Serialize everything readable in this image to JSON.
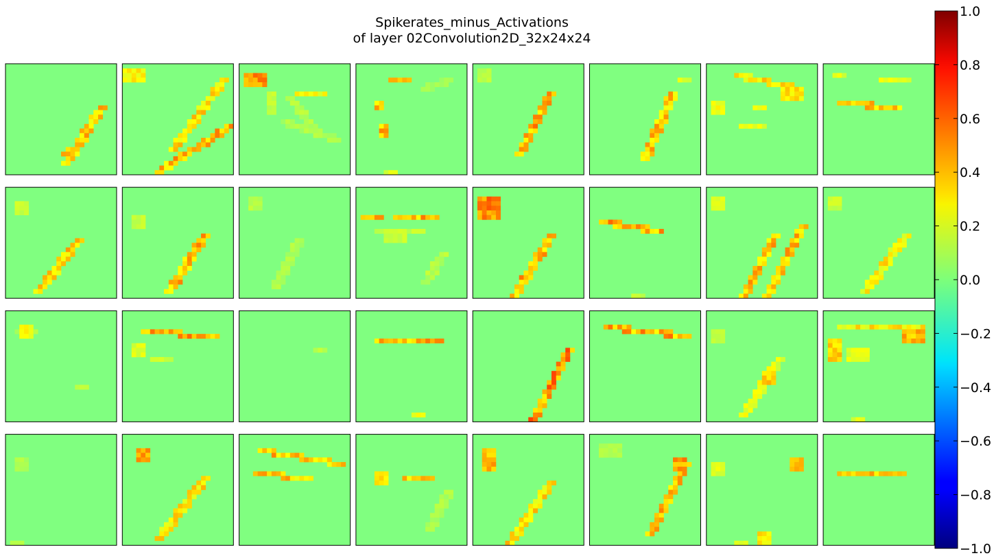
{
  "chart_data": {
    "type": "heatmap",
    "title": [
      "Spikerates_minus_Activations",
      "of layer 02Convolution2D_32x24x24"
    ],
    "grid": {
      "rows": 4,
      "cols": 8,
      "map_size": [
        24,
        24
      ]
    },
    "colormap": "jet",
    "colorbar": {
      "range": [
        -1.0,
        1.0
      ],
      "ticks": [
        1.0,
        0.8,
        0.6,
        0.4,
        0.2,
        0.0,
        -0.2,
        -0.4,
        -0.6,
        -0.8,
        -1.0
      ],
      "tick_labels": [
        "1.0",
        "0.8",
        "0.6",
        "0.4",
        "0.2",
        "0.0",
        "−0.2",
        "−0.4",
        "−0.6",
        "−0.8",
        "−1.0"
      ]
    },
    "background_value": 0.0,
    "maps": [
      {
        "strokes": [
          [
            20,
            9,
            12,
            21,
            0.38
          ],
          [
            13,
            18,
            12,
            19,
            0.48
          ]
        ],
        "blobs": []
      },
      {
        "strokes": [
          [
            21,
            3,
            10,
            18,
            0.34
          ],
          [
            22,
            13,
            7,
            23,
            0.42
          ]
        ],
        "blobs": [
          [
            2,
            2,
            2,
            1,
            0.28
          ]
        ]
      },
      {
        "strokes": [
          [
            10,
            7,
            15,
            13,
            0.12
          ],
          [
            9,
            12,
            20,
            16,
            0.1
          ],
          [
            6,
            6,
            6,
            10,
            0.15
          ]
        ],
        "blobs": [
          [
            3,
            3,
            2,
            1,
            0.48
          ],
          [
            15,
            6,
            3,
            0,
            0.25
          ]
        ]
      },
      {
        "strokes": [
          [
            4,
            8,
            4,
            9,
            0.38
          ],
          [
            5,
            13,
            5,
            15,
            0.42
          ],
          [
            14,
            5,
            19,
            3,
            0.08
          ]
        ],
        "blobs": [
          [
            9,
            3,
            2,
            0,
            0.4
          ],
          [
            7,
            23,
            1,
            0,
            0.2
          ]
        ]
      },
      {
        "strokes": [
          [
            16,
            6,
            9,
            19,
            0.44
          ]
        ],
        "blobs": [
          [
            2,
            2,
            1,
            1,
            0.12
          ]
        ]
      },
      {
        "strokes": [
          [
            17,
            6,
            11,
            20,
            0.4
          ]
        ],
        "blobs": [
          [
            20,
            3,
            1,
            0,
            0.2
          ]
        ]
      },
      {
        "strokes": [
          [
            6,
            2,
            19,
            5,
            0.32
          ],
          [
            7,
            13,
            11,
            13,
            0.2
          ]
        ],
        "blobs": [
          [
            2,
            9,
            1,
            1,
            0.25
          ],
          [
            11,
            9,
            1,
            0,
            0.22
          ],
          [
            18,
            6,
            2,
            1,
            0.3
          ]
        ]
      },
      {
        "strokes": [
          [
            3,
            8,
            15,
            9,
            0.38
          ]
        ],
        "blobs": [
          [
            3,
            2,
            1,
            0,
            0.2
          ],
          [
            15,
            3,
            3,
            0,
            0.22
          ]
        ]
      },
      {
        "strokes": [
          [
            15,
            11,
            6,
            22,
            0.38
          ]
        ],
        "blobs": [
          [
            3,
            4,
            1,
            1,
            0.15
          ]
        ]
      },
      {
        "strokes": [
          [
            17,
            10,
            9,
            22,
            0.42
          ]
        ],
        "blobs": [
          [
            3,
            7,
            1,
            1,
            0.15
          ]
        ]
      },
      {
        "strokes": [
          [
            12,
            11,
            7,
            21,
            0.1
          ]
        ],
        "blobs": [
          [
            3,
            3,
            1,
            1,
            0.12
          ]
        ]
      },
      {
        "strokes": [
          [
            8,
            6,
            16,
            6,
            0.42
          ],
          [
            4,
            9,
            13,
            9,
            0.15
          ],
          [
            18,
            14,
            14,
            20,
            0.12
          ]
        ],
        "blobs": [
          [
            3,
            6,
            2,
            0,
            0.4
          ],
          [
            8,
            10,
            2,
            1,
            0.15
          ]
        ]
      },
      {
        "strokes": [
          [
            16,
            10,
            8,
            23,
            0.42
          ]
        ],
        "blobs": [
          [
            3,
            4,
            2,
            2,
            0.5
          ]
        ]
      },
      {
        "strokes": [
          [
            2,
            7,
            14,
            9,
            0.44
          ]
        ],
        "blobs": [
          [
            10,
            23,
            1,
            0,
            0.15
          ]
        ]
      },
      {
        "strokes": [
          [
            14,
            10,
            7,
            23,
            0.4
          ],
          [
            20,
            8,
            12,
            23,
            0.4
          ]
        ],
        "blobs": [
          [
            2,
            3,
            1,
            1,
            0.18
          ]
        ]
      },
      {
        "strokes": [
          [
            17,
            10,
            8,
            22,
            0.3
          ]
        ],
        "blobs": [
          [
            2,
            3,
            1,
            1,
            0.15
          ]
        ]
      },
      {
        "strokes": [
          [
            2,
            4,
            5,
            4,
            0.1
          ]
        ],
        "blobs": [
          [
            4,
            4,
            1,
            1,
            0.25
          ],
          [
            16,
            16,
            1,
            0,
            0.12
          ]
        ]
      },
      {
        "strokes": [
          [
            4,
            4,
            19,
            5,
            0.45
          ]
        ],
        "blobs": [
          [
            3,
            8,
            1,
            1,
            0.2
          ],
          [
            8,
            10,
            2,
            0,
            0.15
          ]
        ]
      },
      {
        "strokes": [],
        "blobs": [
          [
            17,
            8,
            1,
            0,
            0.12
          ]
        ]
      },
      {
        "strokes": [
          [
            4,
            6,
            17,
            6,
            0.45
          ]
        ],
        "blobs": [
          [
            13,
            22,
            1,
            0,
            0.25
          ]
        ]
      },
      {
        "strokes": [
          [
            20,
            8,
            12,
            23,
            0.5
          ]
        ],
        "blobs": []
      },
      {
        "strokes": [
          [
            3,
            3,
            20,
            5,
            0.44
          ]
        ],
        "blobs": []
      },
      {
        "strokes": [
          [
            15,
            10,
            7,
            22,
            0.22
          ]
        ],
        "blobs": [
          [
            13,
            14,
            1,
            1,
            0.35
          ],
          [
            2,
            5,
            1,
            1,
            0.12
          ]
        ]
      },
      {
        "strokes": [
          [
            3,
            3,
            20,
            3,
            0.3
          ]
        ],
        "blobs": [
          [
            2,
            8,
            1,
            2,
            0.35
          ],
          [
            7,
            9,
            2,
            1,
            0.2
          ],
          [
            19,
            5,
            2,
            1,
            0.4
          ],
          [
            7,
            23,
            1,
            0,
            0.2
          ]
        ]
      },
      {
        "strokes": [],
        "blobs": [
          [
            2,
            23,
            1,
            0,
            0.15
          ],
          [
            3,
            6,
            1,
            1,
            0.1
          ]
        ]
      },
      {
        "strokes": [
          [
            17,
            9,
            7,
            22,
            0.34
          ]
        ],
        "blobs": [
          [
            4,
            4,
            1,
            1,
            0.5
          ]
        ]
      },
      {
        "strokes": [
          [
            4,
            3,
            21,
            6,
            0.4
          ],
          [
            3,
            8,
            14,
            9,
            0.38
          ]
        ],
        "blobs": []
      },
      {
        "strokes": [
          [
            10,
            9,
            15,
            9,
            0.42
          ],
          [
            19,
            12,
            15,
            20,
            0.1
          ]
        ],
        "blobs": [
          [
            5,
            9,
            1,
            1,
            0.3
          ]
        ]
      },
      {
        "strokes": [
          [
            16,
            10,
            7,
            23,
            0.34
          ]
        ],
        "blobs": [
          [
            3,
            5,
            1,
            2,
            0.4
          ]
        ]
      },
      {
        "strokes": [
          [
            20,
            6,
            12,
            21,
            0.42
          ]
        ],
        "blobs": [
          [
            19,
            6,
            1,
            1,
            0.45
          ],
          [
            4,
            3,
            2,
            1,
            0.1
          ]
        ]
      },
      {
        "strokes": [],
        "blobs": [
          [
            19,
            6,
            1,
            1,
            0.4
          ],
          [
            12,
            22,
            1,
            1,
            0.3
          ],
          [
            2,
            7,
            1,
            1,
            0.2
          ],
          [
            7,
            23,
            1,
            0,
            0.2
          ]
        ]
      },
      {
        "strokes": [
          [
            3,
            8,
            16,
            8,
            0.38
          ]
        ],
        "blobs": []
      }
    ]
  }
}
